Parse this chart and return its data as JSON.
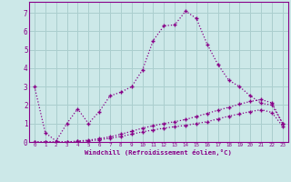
{
  "bg_color": "#cce8e8",
  "grid_color": "#aacece",
  "line_color": "#880088",
  "spine_color": "#880088",
  "title": "Windchill (Refroidissement éolien,°C)",
  "xlim": [
    -0.5,
    23.5
  ],
  "ylim": [
    0,
    7.6
  ],
  "xticks": [
    0,
    1,
    2,
    3,
    4,
    5,
    6,
    7,
    8,
    9,
    10,
    11,
    12,
    13,
    14,
    15,
    16,
    17,
    18,
    19,
    20,
    21,
    22,
    23
  ],
  "yticks": [
    0,
    1,
    2,
    3,
    4,
    5,
    6,
    7
  ],
  "series1_x": [
    0,
    1,
    2,
    3,
    4,
    5,
    6,
    7,
    8,
    9,
    10,
    11,
    12,
    13,
    14,
    15,
    16,
    17,
    18,
    19,
    20,
    21,
    22,
    23
  ],
  "series1_y": [
    3.0,
    0.5,
    0.05,
    1.0,
    1.8,
    1.0,
    1.65,
    2.5,
    2.7,
    3.0,
    3.9,
    5.5,
    6.3,
    6.35,
    7.1,
    6.7,
    5.3,
    4.2,
    3.35,
    3.0,
    2.5,
    2.1,
    2.0,
    1.0
  ],
  "series2_x": [
    0,
    1,
    2,
    3,
    4,
    5,
    6,
    7,
    8,
    9,
    10,
    11,
    12,
    13,
    14,
    15,
    16,
    17,
    18,
    19,
    20,
    21,
    22,
    23
  ],
  "series2_y": [
    0.0,
    0.0,
    0.0,
    0.0,
    0.05,
    0.1,
    0.18,
    0.28,
    0.42,
    0.58,
    0.75,
    0.88,
    1.0,
    1.1,
    1.22,
    1.38,
    1.55,
    1.72,
    1.88,
    2.05,
    2.2,
    2.3,
    2.12,
    1.0
  ],
  "series3_x": [
    0,
    1,
    2,
    3,
    4,
    5,
    6,
    7,
    8,
    9,
    10,
    11,
    12,
    13,
    14,
    15,
    16,
    17,
    18,
    19,
    20,
    21,
    22,
    23
  ],
  "series3_y": [
    0.0,
    0.0,
    0.0,
    0.0,
    0.03,
    0.06,
    0.12,
    0.2,
    0.3,
    0.42,
    0.55,
    0.65,
    0.75,
    0.83,
    0.9,
    1.0,
    1.1,
    1.25,
    1.4,
    1.52,
    1.65,
    1.75,
    1.6,
    0.85
  ]
}
